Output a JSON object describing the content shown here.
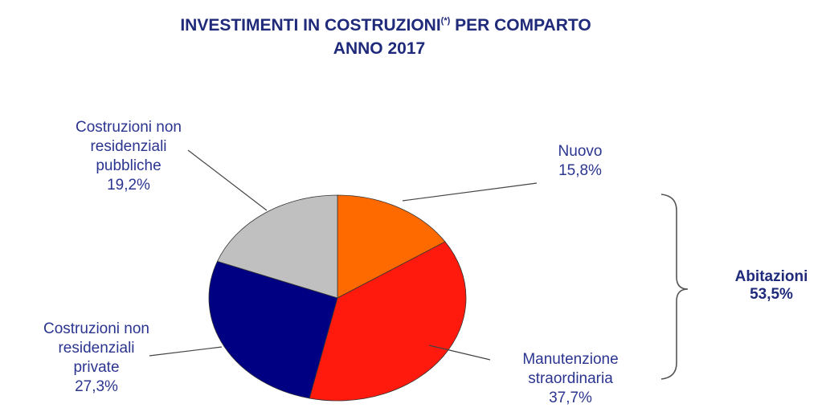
{
  "chart_data": {
    "type": "pie",
    "title_main": "INVESTIMENTI IN COSTRUZIONI",
    "title_sup": "(*)",
    "title_rest": " PER COMPARTO",
    "subtitle": "ANNO 2017",
    "slices": [
      {
        "label_lines": [
          "Nuovo"
        ],
        "value": 15.8,
        "value_label": "15,8%",
        "color": "#ff6a00"
      },
      {
        "label_lines": [
          "Manutenzione",
          "straordinaria"
        ],
        "value": 37.7,
        "value_label": "37,7%",
        "color": "#ff1a0d"
      },
      {
        "label_lines": [
          "Costruzioni non",
          "residenziali",
          "private"
        ],
        "value": 27.3,
        "value_label": "27,3%",
        "color": "#000082"
      },
      {
        "label_lines": [
          "Costruzioni non",
          "residenziali",
          "pubbliche"
        ],
        "value": 19.2,
        "value_label": "19,2%",
        "color": "#c0c0c0"
      }
    ],
    "group": {
      "label": "Abitazioni",
      "value": 53.5,
      "value_label": "53,5%",
      "members": [
        "Nuovo",
        "Manutenzione straordinaria"
      ]
    }
  }
}
